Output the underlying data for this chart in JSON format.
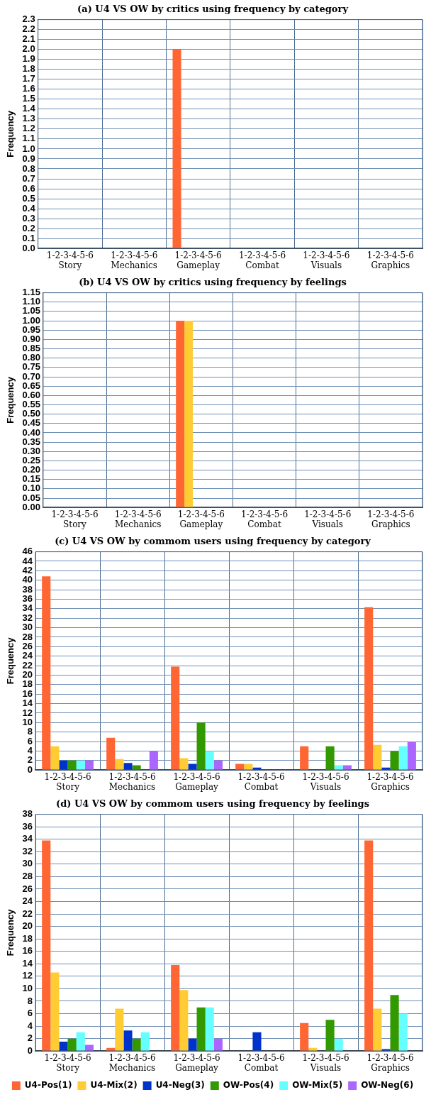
{
  "chart_data": [
    {
      "type": "bar",
      "title": "(a) U4 VS OW by critics using frequency by category",
      "ylabel": "Frequency",
      "categories": [
        "1-2-3-4-5-6\nStory",
        "1-2-3-4-5-6\nMechanics",
        "1-2-3-4-5-6\nGameplay",
        "1-2-3-4-5-6\nCombat",
        "1-2-3-4-5-6\nVisuals",
        "1-2-3-4-5-6\nGraphics"
      ],
      "series": [
        {
          "color": "#ff6633",
          "values": [
            0,
            0,
            2,
            0,
            0,
            0
          ]
        },
        {
          "color": "#ffcc33",
          "values": [
            0,
            0,
            0,
            0,
            0,
            0
          ]
        },
        {
          "color": "#0033cc",
          "values": [
            0,
            0,
            0,
            0,
            0,
            0
          ]
        },
        {
          "color": "#339900",
          "values": [
            0,
            0,
            0,
            0,
            0,
            0
          ]
        },
        {
          "color": "#66ffff",
          "values": [
            0,
            0,
            0,
            0,
            0,
            0
          ]
        },
        {
          "color": "#aa66ff",
          "values": [
            0,
            0,
            0,
            0,
            0,
            0
          ]
        }
      ],
      "ylim": [
        0,
        2.3
      ],
      "yticks": [
        {
          "value": 0,
          "label": "0.0"
        },
        0.1,
        0.2,
        0.3,
        0.4,
        0.5,
        0.6,
        0.7,
        0.8,
        0.9,
        {
          "value": 1,
          "label": "1.0"
        },
        1.1,
        1.2,
        1.3,
        1.4,
        1.5,
        1.6,
        1.7,
        1.8,
        1.9,
        {
          "value": 2,
          "label": "2.0"
        },
        2.1,
        2.2,
        2.3
      ],
      "grid": true,
      "legend": false
    },
    {
      "type": "bar",
      "title": "(b) U4 VS OW by critics using frequency by feelings",
      "ylabel": "Frequency",
      "categories": [
        "1-2-3-4-5-6\nStory",
        "1-2-3-4-5-6\nMechanics",
        "1-2-3-4-5-6\nGameplay",
        "1-2-3-4-5-6\nCombat",
        "1-2-3-4-5-6\nVisuals",
        "1-2-3-4-5-6\nGraphics"
      ],
      "series": [
        {
          "color": "#ff6633",
          "values": [
            0,
            0,
            1,
            0,
            0,
            0
          ]
        },
        {
          "color": "#ffcc33",
          "values": [
            0,
            0,
            1,
            0,
            0,
            0
          ]
        },
        {
          "color": "#0033cc",
          "values": [
            0,
            0,
            0,
            0,
            0,
            0
          ]
        },
        {
          "color": "#339900",
          "values": [
            0,
            0,
            0,
            0,
            0,
            0
          ]
        },
        {
          "color": "#66ffff",
          "values": [
            0,
            0,
            0,
            0,
            0,
            0
          ]
        },
        {
          "color": "#aa66ff",
          "values": [
            0,
            0,
            0,
            0,
            0,
            0
          ]
        }
      ],
      "ylim": [
        0,
        1.15
      ],
      "yticks": [
        {
          "value": 0,
          "label": "0.00"
        },
        0.05,
        {
          "value": 0.1,
          "label": "0.10"
        },
        0.15,
        {
          "value": 0.2,
          "label": "0.20"
        },
        0.25,
        {
          "value": 0.3,
          "label": "0.30"
        },
        0.35,
        {
          "value": 0.4,
          "label": "0.40"
        },
        0.45,
        {
          "value": 0.5,
          "label": "0.50"
        },
        0.55,
        {
          "value": 0.6,
          "label": "0.60"
        },
        0.65,
        {
          "value": 0.7,
          "label": "0.70"
        },
        0.75,
        {
          "value": 0.8,
          "label": "0.80"
        },
        0.85,
        {
          "value": 0.9,
          "label": "0.90"
        },
        0.95,
        {
          "value": 1,
          "label": "1.00"
        },
        1.05,
        {
          "value": 1.1,
          "label": "1.10"
        },
        1.15
      ],
      "grid": true,
      "legend": false
    },
    {
      "type": "bar",
      "title": "(c) U4 VS OW by commom users using frequency by category",
      "ylabel": "Frequency",
      "categories": [
        "1-2-3-4-5-6\nStory",
        "1-2-3-4-5-6\nMechanics",
        "1-2-3-4-5-6\nGameplay",
        "1-2-3-4-5-6\nCombat",
        "1-2-3-4-5-6\nVisuals",
        "1-2-3-4-5-6\nGraphics"
      ],
      "series": [
        {
          "color": "#ff6633",
          "values": [
            40.8,
            6.8,
            21.8,
            1.3,
            5,
            34.3
          ]
        },
        {
          "color": "#ffcc33",
          "values": [
            5,
            2.3,
            2.5,
            1.3,
            0,
            5.3
          ]
        },
        {
          "color": "#0033cc",
          "values": [
            2,
            1.5,
            1.3,
            0.5,
            0,
            0.5
          ]
        },
        {
          "color": "#339900",
          "values": [
            2,
            1,
            10,
            0,
            5,
            4
          ]
        },
        {
          "color": "#66ffff",
          "values": [
            2,
            0,
            4,
            0,
            1,
            5
          ]
        },
        {
          "color": "#aa66ff",
          "values": [
            2,
            4,
            2,
            0,
            1,
            6
          ]
        }
      ],
      "ylim": [
        0,
        46
      ],
      "yticks": [
        0,
        2,
        4,
        6,
        8,
        10,
        12,
        14,
        16,
        18,
        20,
        22,
        24,
        26,
        28,
        30,
        32,
        34,
        36,
        38,
        40,
        42,
        44,
        46
      ],
      "grid": true,
      "legend": false
    },
    {
      "type": "bar",
      "title": "(d) U4 VS OW by commom users using frequency by feelings",
      "ylabel": "Frequency",
      "categories": [
        "1-2-3-4-5-6\nStory",
        "1-2-3-4-5-6\nMechanics",
        "1-2-3-4-5-6\nGameplay",
        "1-2-3-4-5-6\nCombat",
        "1-2-3-4-5-6\nVisuals",
        "1-2-3-4-5-6\nGraphics"
      ],
      "series": [
        {
          "name": "U4-Pos(1)",
          "color": "#ff6633",
          "values": [
            33.8,
            0.5,
            13.8,
            0,
            4.5,
            33.8
          ]
        },
        {
          "name": "U4-Mix(2)",
          "color": "#ffcc33",
          "values": [
            12.6,
            6.8,
            9.8,
            0,
            0.5,
            6.8
          ]
        },
        {
          "name": "U4-Neg(3)",
          "color": "#0033cc",
          "values": [
            1.5,
            3.3,
            2,
            3,
            0,
            0.3
          ]
        },
        {
          "name": "OW-Pos(4)",
          "color": "#339900",
          "values": [
            2,
            2,
            7,
            0,
            5,
            9
          ]
        },
        {
          "name": "OW-Mix(5)",
          "color": "#66ffff",
          "values": [
            3,
            3,
            7,
            0,
            2,
            6
          ]
        },
        {
          "name": "OW-Neg(6)",
          "color": "#aa66ff",
          "values": [
            1,
            0,
            2,
            0,
            0,
            0
          ]
        }
      ],
      "ylim": [
        0,
        38
      ],
      "yticks": [
        0,
        2,
        4,
        6,
        8,
        10,
        12,
        14,
        16,
        18,
        20,
        22,
        24,
        26,
        28,
        30,
        32,
        34,
        36,
        38
      ],
      "grid": true,
      "legend": "bottom"
    }
  ]
}
